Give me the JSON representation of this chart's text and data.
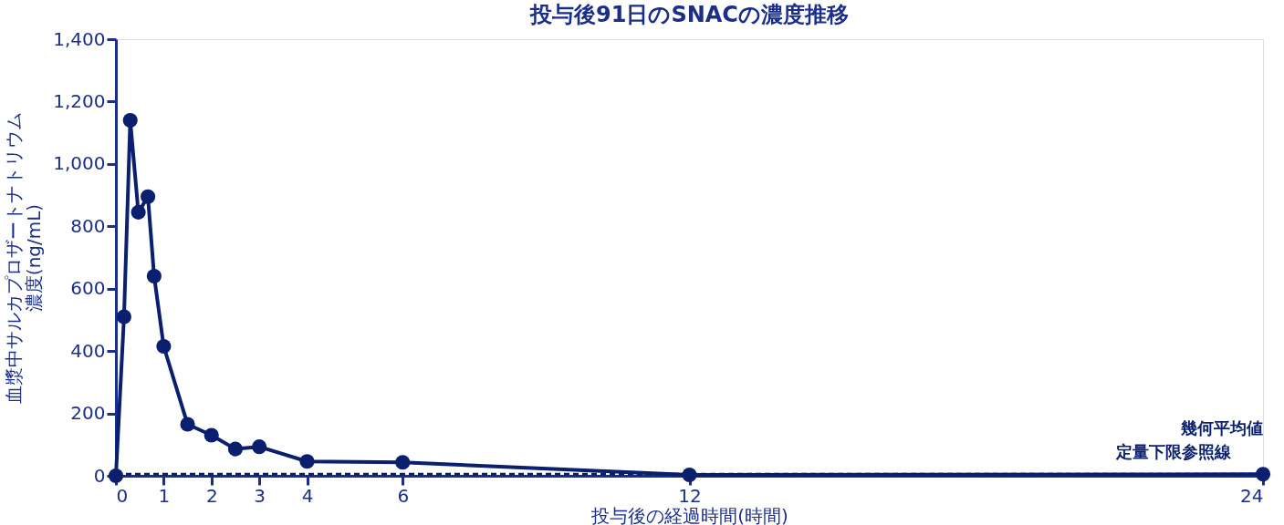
{
  "chart_data": {
    "type": "line",
    "title": "投与後91日のSNACの濃度推移",
    "xlabel": "投与後の経過時間(時間)",
    "ylabel": "血漿中サルカプロザートナトリウム濃度(ng/mL)",
    "x": [
      0,
      0.17,
      0.3,
      0.47,
      0.67,
      0.8,
      1,
      1.5,
      2,
      2.5,
      3,
      4,
      6,
      12,
      24
    ],
    "series": [
      {
        "name": "幾何平均値",
        "color": "#0a1f6e",
        "values": [
          0,
          510,
          1140,
          845,
          895,
          640,
          415,
          165,
          130,
          86,
          93,
          46,
          43,
          3,
          5
        ]
      }
    ],
    "xlim": [
      0,
      24
    ],
    "xticks": [
      0,
      1,
      2,
      3,
      4,
      6,
      12,
      24
    ],
    "ylim": [
      0,
      1400
    ],
    "yticks": [
      0,
      200,
      400,
      600,
      800,
      {
        "value": 1000,
        "label": "1,000"
      },
      {
        "value": 1200,
        "label": "1,200"
      },
      {
        "value": 1400,
        "label": "1,400"
      }
    ],
    "ref_lines": [
      {
        "axis": "y",
        "value": 5,
        "label": "定量下限参照線",
        "color": "#0a1f6e",
        "line_style": "dashed"
      }
    ],
    "marker": "circle",
    "line_style": "solid",
    "grid": false,
    "legend": false
  }
}
